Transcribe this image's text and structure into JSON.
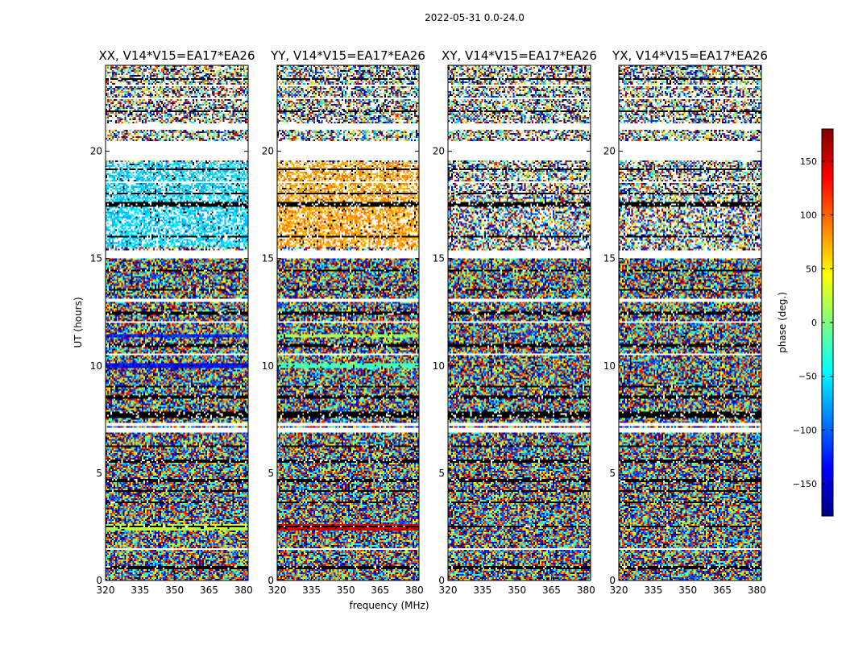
{
  "figure": {
    "suptitle": "2022-05-31 0.0-24.0"
  },
  "chart_data": {
    "type": "heatmap",
    "xlabel": "frequency (MHz)",
    "ylabel": "UT (hours)",
    "xlim": [
      320,
      382
    ],
    "ylim": [
      0,
      24
    ],
    "xticks": [
      "320",
      "335",
      "350",
      "365",
      "380"
    ],
    "yticks": [
      "0",
      "5",
      "10",
      "15",
      "20"
    ],
    "xtick_values": [
      320,
      335,
      350,
      365,
      380
    ],
    "ytick_values": [
      0,
      5,
      10,
      15,
      20
    ],
    "colorbar": {
      "label": "phase (deg.)",
      "range": [
        -180,
        180
      ],
      "ticks": [
        "−150",
        "−100",
        "−50",
        "0",
        "50",
        "100",
        "150"
      ],
      "tick_values": [
        -150,
        -100,
        -50,
        0,
        50,
        100,
        150
      ],
      "colormap": [
        "#00007f",
        "#0000ff",
        "#007fff",
        "#00ffff",
        "#7fff7f",
        "#ffff00",
        "#ff7f00",
        "#ff0000",
        "#7f0000"
      ]
    },
    "panels": [
      {
        "title": "XX, V14*V15=EA17*EA26",
        "coherent_bands": [
          {
            "y": [
              2.3,
              2.6
            ],
            "phase": 20
          },
          {
            "y": [
              9.9,
              10.1
            ],
            "phase": -130
          },
          {
            "y": [
              11.3,
              11.5
            ],
            "phase": -120
          },
          {
            "y": [
              15.5,
              19.5
            ],
            "phase": -60
          }
        ]
      },
      {
        "title": "YY, V14*V15=EA17*EA26",
        "coherent_bands": [
          {
            "y": [
              2.3,
              2.6
            ],
            "phase": 150
          },
          {
            "y": [
              9.9,
              10.1
            ],
            "phase": -20
          },
          {
            "y": [
              11.3,
              11.5
            ],
            "phase": 10
          },
          {
            "y": [
              15.5,
              19.5
            ],
            "phase": 80
          }
        ]
      },
      {
        "title": "XY, V14*V15=EA17*EA26",
        "coherent_bands": []
      },
      {
        "title": "YX, V14*V15=EA17*EA26",
        "coherent_bands": []
      }
    ],
    "flagged_white_bands": [
      [
        1.4,
        1.5
      ],
      [
        6.9,
        7.1
      ],
      [
        7.2,
        7.35
      ],
      [
        10.5,
        10.6
      ],
      [
        12.0,
        12.1
      ],
      [
        13.0,
        13.1
      ],
      [
        14.0,
        14.05
      ],
      [
        15.0,
        15.4
      ],
      [
        18.5,
        18.6
      ],
      [
        19.6,
        20.5
      ],
      [
        21.0,
        21.3
      ],
      [
        22.4,
        22.5
      ],
      [
        23.0,
        23.1
      ]
    ],
    "flagged_black_bands": [
      [
        0.55,
        0.65
      ],
      [
        2.45,
        2.55
      ],
      [
        3.6,
        3.7
      ],
      [
        4.1,
        4.2
      ],
      [
        4.6,
        4.7
      ],
      [
        5.5,
        5.6
      ],
      [
        6.2,
        6.3
      ],
      [
        7.6,
        7.9
      ],
      [
        8.5,
        8.6
      ],
      [
        9.0,
        9.1
      ],
      [
        9.5,
        9.55
      ],
      [
        10.9,
        11.0
      ],
      [
        12.4,
        12.5
      ],
      [
        13.5,
        13.55
      ],
      [
        14.4,
        14.5
      ],
      [
        16.0,
        16.05
      ],
      [
        17.4,
        17.6
      ],
      [
        18.0,
        18.05
      ],
      [
        19.1,
        19.2
      ],
      [
        21.8,
        21.9
      ],
      [
        23.3,
        23.4
      ]
    ]
  }
}
